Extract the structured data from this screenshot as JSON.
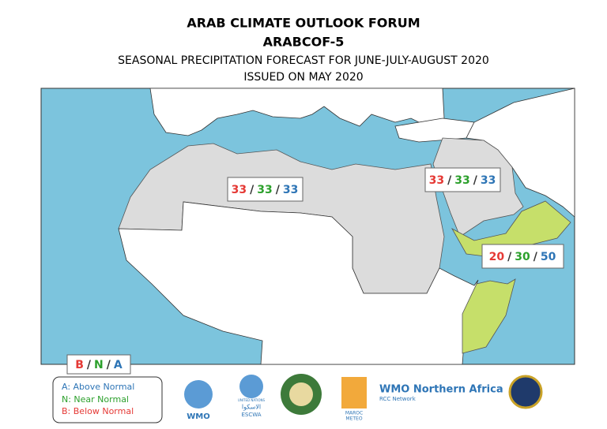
{
  "header": {
    "title": "ARAB CLIMATE OUTLOOK FORUM",
    "subtitle": "ARABCOF-5",
    "line3": "SEASONAL PRECIPITATION FORECAST FOR JUNE-JULY-AUGUST 2020",
    "line4": "ISSUED ON MAY 2020"
  },
  "separator": "/",
  "regions": [
    {
      "below": 33,
      "near": 33,
      "above": 33
    },
    {
      "below": 33,
      "near": 33,
      "above": 33
    },
    {
      "below": 20,
      "near": 30,
      "above": 50
    }
  ],
  "legend": {
    "letters": [
      "B",
      "N",
      "A"
    ],
    "items": [
      "A: Above Normal",
      "N: Near Normal",
      "B: Below Normal"
    ]
  },
  "logos": {
    "wmo": "WMO",
    "un": "UNITED NATIONS",
    "escwa_ar": "الاسكوا",
    "escwa": "ESCWA",
    "maroc": "MAROC",
    "meteo": "METEO",
    "rcc": "WMO Northern Africa",
    "rcc_sub": "RCC Network"
  }
}
